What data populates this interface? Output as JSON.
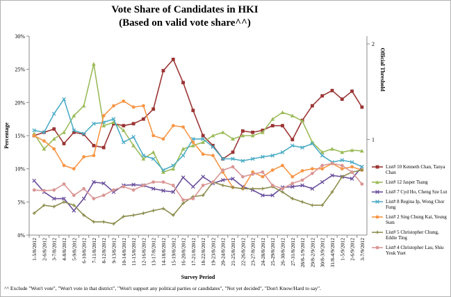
{
  "chart_data": {
    "type": "line",
    "title": "Vote Share of Candidates in HKI",
    "subtitle": "(Based on valid vote share^^)",
    "x_label": "Survey Period",
    "y_label": "Percentage",
    "y2_label": "Official Threshold",
    "footnote": "^^ Exclude \"Won't vote\", \"Won't vote in that district\", \"Won't support any political parties or candidates\", \"Not yet decided\", \"Don't Know/Hard to say\".",
    "categories": [
      "1-5/8/2012",
      "2-6/8/2012",
      "3-7/8/2012",
      "4-8/8/2012",
      "5-9/8/2012",
      "6-10/8/2012",
      "7-11/8/2012",
      "8-12/8/2012",
      "9-13/8/2012",
      "10-14/8/2012",
      "11-15/8/2012",
      "12-16/8/2012",
      "13-17/8/2012",
      "14-18/8/2012",
      "15-19/8/2012",
      "16-20/8/2012",
      "17-21/8/2012",
      "18-22/8/2012",
      "19-23/8/2012",
      "20-24/8/2012",
      "21-25/8/2012",
      "22-26/8/2012",
      "23-27/8/2012",
      "24-28/8/2012",
      "25-29/8/2012",
      "26-30/8/2012",
      "27-31/8/2012",
      "28/8-1/9/2012",
      "29/8-2/9/2012",
      "30/8-3/9/2012",
      "31/8-4/9/2012",
      "1-5/9/2012",
      "2-6/9/2012",
      "3-7/9/2012"
    ],
    "ylim": [
      0,
      30
    ],
    "yticks": [
      {
        "value": 0,
        "label": "0%"
      },
      {
        "value": 5,
        "label": "5%"
      },
      {
        "value": 10,
        "label": "10%"
      },
      {
        "value": 15,
        "label": "15%"
      },
      {
        "value": 20,
        "label": "20%"
      },
      {
        "value": 25,
        "label": "25%"
      },
      {
        "value": 30,
        "label": "30%"
      }
    ],
    "y2lim": [
      0,
      2.08
    ],
    "y2ticks": [
      1,
      2
    ],
    "series": [
      {
        "name": "List# 10 Kenneth Chan, Tanya Chan",
        "color": "#9b3434",
        "marker": "square",
        "values": [
          15,
          15.5,
          16,
          13.8,
          15.5,
          15.2,
          13.5,
          13.2,
          16.8,
          16.5,
          16.8,
          17.5,
          19,
          24.8,
          26.5,
          23,
          18.8,
          15,
          13.5,
          11.5,
          12.5,
          15.7,
          15.5,
          15.8,
          16.5,
          16.5,
          14.4,
          17.3,
          19.5,
          21,
          21.8,
          20.5,
          21.7,
          19.3
        ]
      },
      {
        "name": "List# 12 Jasper Tsang",
        "color": "#9bbb59",
        "marker": "triangle",
        "values": [
          15.3,
          13,
          14.5,
          15.5,
          18,
          19.5,
          25.8,
          16.5,
          17,
          15.8,
          13.5,
          11.5,
          12.5,
          9.5,
          10,
          13,
          13.5,
          14,
          15,
          15.5,
          14.5,
          15,
          15,
          15.5,
          17.5,
          18.5,
          18,
          17.2,
          14,
          12.5,
          13,
          12.5,
          12.8,
          12.7
        ]
      },
      {
        "name": "List# 7 Cyd Ho, Cheng Sze Lut",
        "color": "#6a4f9c",
        "marker": "x",
        "values": [
          8.2,
          6.5,
          5.5,
          5.5,
          3.7,
          5.5,
          8,
          7.8,
          6.5,
          7.5,
          7.6,
          7.5,
          7,
          6.7,
          6.5,
          8.7,
          7.3,
          8.8,
          7.8,
          8.3,
          8.5,
          7.3,
          6.8,
          6,
          6,
          7.2,
          7.3,
          7.5,
          7,
          8,
          9,
          8.8,
          8.5,
          10.3
        ]
      },
      {
        "name": "List# 8 Regina Ip, Wong Chor Fung",
        "color": "#4bacc6",
        "marker": "x",
        "values": [
          15.8,
          15.5,
          18.3,
          20.5,
          15.8,
          15.3,
          16.8,
          17,
          17.5,
          14,
          14.8,
          12,
          11.5,
          9.8,
          10.5,
          12,
          14.5,
          14.5,
          13.3,
          11.5,
          11.5,
          11.2,
          11.5,
          11.8,
          12,
          12.5,
          13.5,
          13.2,
          13.8,
          12,
          11,
          11.3,
          11,
          10.3
        ]
      },
      {
        "name": "List# 2 Sing Chung Kai, Yeung Sum",
        "color": "#f79646",
        "marker": "circle",
        "values": [
          15,
          14.2,
          13,
          10.5,
          10,
          11.8,
          12,
          18,
          19.5,
          20.2,
          19.3,
          19.5,
          15,
          14.5,
          16.5,
          16.3,
          14,
          12.2,
          12,
          9.5,
          7.2,
          7,
          9.5,
          8.8,
          9.8,
          10.5,
          8.8,
          9.7,
          10,
          10,
          10.8,
          10,
          10.3,
          9.8
        ]
      },
      {
        "name": "List# 5 Christopher Chung, Eddie Ting",
        "color": "#8c8c4e",
        "marker": "plus",
        "values": [
          3.3,
          4.5,
          4.3,
          5,
          4.5,
          3,
          2,
          2,
          1.7,
          2.8,
          3,
          3.3,
          3.7,
          4,
          3,
          4.8,
          5.8,
          6,
          8,
          7.5,
          7.2,
          7,
          7,
          7,
          7.3,
          6.5,
          5.5,
          5,
          4.5,
          4.5,
          6.5,
          8.8,
          9.5,
          9.8
        ]
      },
      {
        "name": "List# 4 Christopher Lau, Shiu Yeuk Yuet",
        "color": "#d99694",
        "marker": "circle",
        "values": [
          6.8,
          6.7,
          6.8,
          7.7,
          6,
          7,
          5.5,
          6,
          6.8,
          7.3,
          6.8,
          7.5,
          8,
          8,
          7.5,
          5.3,
          5.5,
          7.5,
          8,
          9.8,
          10.3,
          8.8,
          9.2,
          9.5,
          7.5,
          7,
          7.8,
          8.3,
          9.3,
          10.5,
          10.8,
          10.5,
          9.5,
          7.7
        ]
      }
    ]
  }
}
